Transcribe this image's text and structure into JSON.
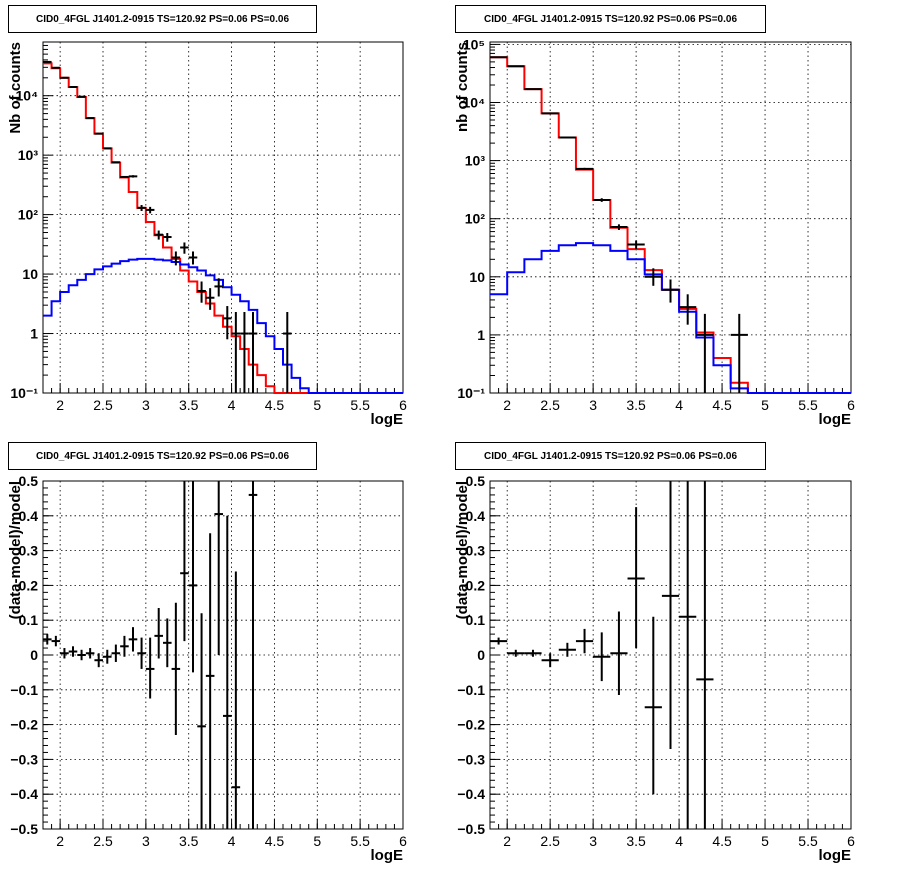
{
  "chart_data": [
    {
      "type": "line",
      "title": "CID0_4FGL J1401.2-0915 TS=120.92 PS=0.06 PS=0.06",
      "xlabel": "logE",
      "ylabel": "Nb of counts",
      "yscale": "log",
      "xlim": [
        1.8,
        6.0
      ],
      "ylim": [
        0.1,
        80000
      ],
      "grid": true,
      "xticks": [
        "2",
        "2.5",
        "3",
        "3.5",
        "4",
        "4.5",
        "5",
        "5.5",
        "6"
      ],
      "yticks": [
        "10⁻¹",
        "1",
        "10",
        "10²",
        "10³",
        "10⁴"
      ],
      "bin_edges": [
        1.8,
        1.9,
        2.0,
        2.1,
        2.2,
        2.3,
        2.4,
        2.5,
        2.6,
        2.7,
        2.8,
        2.9,
        3.0,
        3.1,
        3.2,
        3.3,
        3.4,
        3.5,
        3.6,
        3.7,
        3.8,
        3.9,
        4.0,
        4.1,
        4.2,
        4.3,
        4.4,
        4.5,
        4.6,
        4.7,
        4.8,
        4.9,
        5.0,
        5.1,
        5.2,
        5.3,
        5.4,
        5.5,
        5.6,
        5.7,
        5.8,
        5.9,
        6.0
      ],
      "series": [
        {
          "color": "#ff0000",
          "values": [
            35000,
            29000,
            20000,
            14000,
            9500,
            4200,
            2300,
            1300,
            750,
            420,
            240,
            130,
            75,
            45,
            28,
            18,
            11.5,
            7.5,
            5,
            3.2,
            2,
            1.3,
            0.9,
            0.55,
            0.3,
            0.2,
            0.13,
            0.1,
            0.1,
            0.1,
            0.1,
            0.1,
            0.1,
            0.1,
            0.1,
            0.1,
            0.1,
            0.1,
            0.1,
            0.1,
            0.1,
            0.1
          ]
        },
        {
          "color": "#0000ff",
          "values": [
            2,
            3.5,
            5,
            6.5,
            8,
            10,
            12,
            13.5,
            15,
            16.5,
            17.5,
            18,
            18,
            17.5,
            17,
            16,
            14.5,
            13,
            11.5,
            9.5,
            8,
            6,
            4.5,
            3.5,
            2.5,
            1.5,
            0.9,
            0.55,
            0.3,
            0.18,
            0.12,
            0.1,
            0.1,
            0.1,
            0.1,
            0.1,
            0.1,
            0.1,
            0.1,
            0.1,
            0.1,
            0.1
          ]
        }
      ],
      "points": {
        "color": "#000000",
        "x": [
          1.85,
          1.95,
          2.05,
          2.15,
          2.25,
          2.35,
          2.45,
          2.55,
          2.65,
          2.75,
          2.85,
          2.95,
          3.05,
          3.15,
          3.25,
          3.35,
          3.45,
          3.55,
          3.65,
          3.75,
          3.85,
          3.95,
          4.05,
          4.15,
          4.25,
          4.65
        ],
        "y": [
          37000,
          29500,
          20000,
          14000,
          9600,
          4200,
          2300,
          1300,
          760,
          430,
          440,
          130,
          120,
          46,
          42,
          19,
          28,
          19,
          5.2,
          4,
          6.2,
          1.8,
          1,
          1,
          1,
          1
        ],
        "ylow": [
          37000,
          29500,
          20000,
          14000,
          9600,
          4200,
          2300,
          1300,
          760,
          430,
          420,
          115,
          105,
          38,
          35,
          14,
          22,
          14.5,
          3.3,
          2.5,
          4.2,
          0.8,
          0.1,
          0.1,
          0.1,
          0.1
        ],
        "yhigh": [
          37000,
          29500,
          20000,
          14000,
          9600,
          4200,
          2300,
          1300,
          760,
          430,
          460,
          145,
          135,
          54,
          49,
          24,
          34,
          24,
          7.5,
          5.8,
          8.5,
          2.9,
          2.3,
          2.3,
          2.3,
          2.3
        ]
      }
    },
    {
      "type": "line",
      "title": "CID0_4FGL J1401.2-0915 TS=120.92 PS=0.06 PS=0.06",
      "xlabel": "logE",
      "ylabel": "nb of counts",
      "yscale": "log",
      "xlim": [
        1.8,
        6.0
      ],
      "ylim": [
        0.1,
        110000
      ],
      "grid": true,
      "xticks": [
        "2",
        "2.5",
        "3",
        "3.5",
        "4",
        "4.5",
        "5",
        "5.5",
        "6"
      ],
      "yticks": [
        "10⁻¹",
        "1",
        "10",
        "10²",
        "10³",
        "10⁴",
        "10⁵"
      ],
      "bin_edges": [
        1.8,
        2.0,
        2.2,
        2.4,
        2.6,
        2.8,
        3.0,
        3.2,
        3.4,
        3.6,
        3.8,
        4.0,
        4.2,
        4.4,
        4.6,
        4.8,
        5.0,
        5.2,
        5.4,
        5.6,
        5.8,
        6.0
      ],
      "series": [
        {
          "color": "#ff0000",
          "values": [
            60000,
            42000,
            17000,
            6500,
            2500,
            700,
            210,
            70,
            30,
            13,
            6,
            2.8,
            1.1,
            0.4,
            0.15,
            0.1,
            0.1,
            0.1,
            0.1,
            0.1,
            0.1
          ]
        },
        {
          "color": "#0000ff",
          "values": [
            5,
            12,
            20,
            28,
            35,
            38,
            35,
            28,
            20,
            11,
            6,
            2.5,
            0.9,
            0.3,
            0.12,
            0.1,
            0.1,
            0.1,
            0.1,
            0.1,
            0.1
          ]
        }
      ],
      "points": {
        "color": "#000000",
        "x": [
          1.9,
          2.1,
          2.3,
          2.5,
          2.7,
          2.9,
          3.1,
          3.3,
          3.5,
          3.7,
          3.9,
          4.1,
          4.3,
          4.7
        ],
        "y": [
          60000,
          42000,
          17000,
          6500,
          2500,
          720,
          210,
          72,
          36,
          10,
          6,
          3,
          1,
          1
        ],
        "ylow": [
          60000,
          42000,
          17000,
          6500,
          2500,
          690,
          195,
          64,
          30,
          7,
          3.6,
          1.5,
          0.1,
          0.1
        ],
        "yhigh": [
          60000,
          42000,
          17000,
          6500,
          2500,
          750,
          225,
          80,
          42,
          14,
          9,
          5,
          2.3,
          2.3
        ]
      }
    },
    {
      "type": "scatter",
      "title": "CID0_4FGL J1401.2-0915 TS=120.92 PS=0.06 PS=0.06",
      "xlabel": "logE",
      "ylabel": "(data-model)/model",
      "xlim": [
        1.8,
        6.0
      ],
      "ylim": [
        -0.5,
        0.5
      ],
      "grid": true,
      "xticks": [
        "2",
        "2.5",
        "3",
        "3.5",
        "4",
        "4.5",
        "5",
        "5.5",
        "6"
      ],
      "yticks": [
        "−0.5",
        "−0.4",
        "−0.3",
        "−0.2",
        "−0.1",
        "0",
        "0.1",
        "0.2",
        "0.3",
        "0.4",
        "0.5"
      ],
      "points": {
        "color": "#000000",
        "x": [
          1.85,
          1.95,
          2.05,
          2.15,
          2.25,
          2.35,
          2.45,
          2.55,
          2.65,
          2.75,
          2.85,
          2.95,
          3.05,
          3.15,
          3.25,
          3.35,
          3.45,
          3.55,
          3.65,
          3.75,
          3.85,
          3.95,
          4.05,
          4.25
        ],
        "y": [
          0.045,
          0.04,
          0.005,
          0.01,
          0.0,
          0.005,
          -0.015,
          -0.005,
          0.005,
          0.025,
          0.045,
          0.005,
          -0.04,
          0.055,
          0.035,
          -0.04,
          0.235,
          0.2,
          -0.205,
          -0.06,
          0.405,
          -0.175,
          -0.38,
          0.46
        ],
        "ylow": [
          0.03,
          0.025,
          -0.01,
          -0.005,
          -0.015,
          -0.01,
          -0.035,
          -0.025,
          -0.02,
          -0.005,
          0.01,
          -0.04,
          -0.125,
          -0.01,
          -0.035,
          -0.23,
          0.04,
          -0.05,
          -0.5,
          -0.5,
          0.0,
          -0.5,
          -0.5,
          -0.5
        ],
        "yhigh": [
          0.06,
          0.055,
          0.02,
          0.025,
          0.015,
          0.02,
          0.005,
          0.015,
          0.03,
          0.055,
          0.08,
          0.05,
          0.05,
          0.135,
          0.105,
          0.15,
          0.5,
          0.5,
          0.12,
          0.35,
          0.5,
          0.4,
          0.24,
          0.5
        ]
      }
    },
    {
      "type": "scatter",
      "title": "CID0_4FGL J1401.2-0915 TS=120.92 PS=0.06 PS=0.06",
      "xlabel": "logE",
      "ylabel": "(data-model)/model",
      "xlim": [
        1.8,
        6.0
      ],
      "ylim": [
        -0.5,
        0.5
      ],
      "grid": true,
      "xticks": [
        "2",
        "2.5",
        "3",
        "3.5",
        "4",
        "4.5",
        "5",
        "5.5",
        "6"
      ],
      "yticks": [
        "−0.5",
        "−0.4",
        "−0.3",
        "−0.2",
        "−0.1",
        "0",
        "0.1",
        "0.2",
        "0.3",
        "0.4",
        "0.5"
      ],
      "points": {
        "color": "#000000",
        "x": [
          1.9,
          2.1,
          2.3,
          2.5,
          2.7,
          2.9,
          3.1,
          3.3,
          3.5,
          3.7,
          3.9,
          4.1,
          4.3
        ],
        "y": [
          0.04,
          0.005,
          0.005,
          -0.015,
          0.015,
          0.04,
          -0.005,
          0.005,
          0.22,
          -0.15,
          0.17,
          0.11,
          -0.07
        ],
        "ylow": [
          0.03,
          -0.005,
          -0.005,
          -0.035,
          -0.005,
          0.005,
          -0.075,
          -0.115,
          0.02,
          -0.4,
          -0.27,
          -0.5,
          -0.5
        ],
        "yhigh": [
          0.05,
          0.015,
          0.015,
          0.005,
          0.035,
          0.075,
          0.065,
          0.125,
          0.425,
          0.11,
          0.5,
          0.5,
          0.5
        ]
      }
    }
  ]
}
